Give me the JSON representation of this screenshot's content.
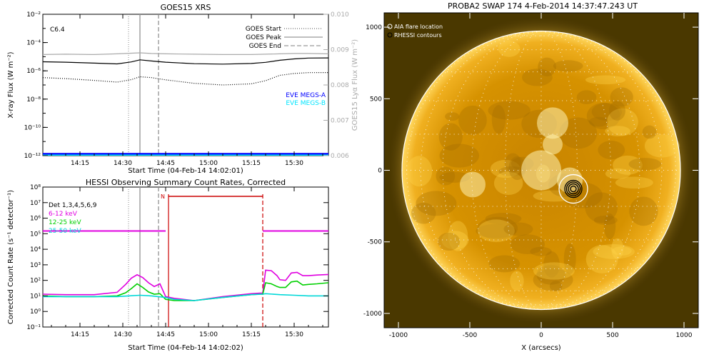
{
  "chart_data": [
    {
      "type": "line",
      "title": "GOES15 XRS",
      "xlabel": "Start Time (04-Feb-14 14:02:01)",
      "ylabel": "X-ray Flux (W m⁻²)",
      "y2label": "GOES15 Lyα Flux (W m⁻²)",
      "xticks": [
        "14:15",
        "14:30",
        "14:45",
        "15:00",
        "15:15",
        "15:30"
      ],
      "xticks_min": [
        15,
        30,
        45,
        60,
        75,
        90
      ],
      "xlim_min": [
        2,
        102
      ],
      "yscale": "log",
      "ylim": [
        1e-12,
        0.01
      ],
      "yticks": [
        "10⁻¹²",
        "10⁻¹⁰",
        "10⁻⁸",
        "10⁻⁶",
        "10⁻⁴",
        "10⁻²"
      ],
      "yticks_exp": [
        -12,
        -10,
        -8,
        -6,
        -4,
        -2
      ],
      "y2lim": [
        0.006,
        0.01
      ],
      "y2ticks": [
        "0.006",
        "0.007",
        "0.008",
        "0.009",
        "0.010"
      ],
      "y2ticks_val": [
        0.006,
        0.007,
        0.008,
        0.009,
        0.01
      ],
      "annotation": "C6.4",
      "legend": [
        "GOES Start",
        "GOES Peak",
        "GOES End"
      ],
      "legend2": [
        "EVE MEGS-A",
        "EVE MEGS-B"
      ],
      "markers_min": {
        "start": 32,
        "peak": 36,
        "end": 42.5
      },
      "series": [
        {
          "name": "",
          "color": "#000000",
          "x": [
            2,
            10,
            20,
            28,
            33,
            36,
            40,
            45,
            55,
            65,
            75,
            80,
            85,
            90,
            95,
            102
          ],
          "y": [
            4.4e-06,
            4.1e-06,
            3.5e-06,
            3.1e-06,
            4.3e-06,
            6e-06,
            5e-06,
            4.1e-06,
            3.2e-06,
            3e-06,
            3.3e-06,
            4e-06,
            5.6e-06,
            7e-06,
            8e-06,
            8.2e-06
          ]
        },
        {
          "name": "",
          "color": "#000000",
          "dash": "1,2",
          "x": [
            2,
            10,
            20,
            28,
            33,
            36,
            40,
            45,
            55,
            65,
            75,
            80,
            85,
            90,
            95,
            102
          ],
          "y": [
            3.3e-07,
            2.8e-07,
            2.1e-07,
            1.6e-07,
            2.4e-07,
            3.8e-07,
            3.3e-07,
            2.3e-07,
            1.3e-07,
            1e-07,
            1.2e-07,
            2e-07,
            4.8e-07,
            6.5e-07,
            7.5e-07,
            7.6e-07
          ]
        },
        {
          "name": "",
          "color": "#aaaaaa",
          "axis": "right",
          "x": [
            2,
            10,
            20,
            28,
            33,
            36,
            40,
            45,
            55,
            65,
            75,
            80,
            85,
            90,
            95,
            102
          ],
          "y": [
            0.00886,
            0.00887,
            0.00886,
            0.00888,
            0.0089,
            0.00891,
            0.00889,
            0.00888,
            0.00887,
            0.00886,
            0.00886,
            0.00887,
            0.00888,
            0.00889,
            0.00889,
            0.00888
          ]
        },
        {
          "name": "EVE MEGS-A",
          "color": "#0000ff",
          "x": [
            2,
            102
          ],
          "y": [
            1.3e-12,
            1.3e-12
          ]
        },
        {
          "name": "EVE MEGS-B",
          "color": "#00e5ff",
          "x": [
            2,
            102
          ],
          "y": [
            1e-12,
            1e-12
          ]
        }
      ]
    },
    {
      "type": "line",
      "title": "HESSI Observing Summary Count Rates, Corrected",
      "xlabel": "Start Time (04-Feb-14 14:02:02)",
      "ylabel": "Corrected Count Rate (s⁻¹ detector⁻¹)",
      "xticks": [
        "14:15",
        "14:30",
        "14:45",
        "15:00",
        "15:15",
        "15:30"
      ],
      "xticks_min": [
        15,
        30,
        45,
        60,
        75,
        90
      ],
      "xlim_min": [
        2,
        102
      ],
      "yscale": "log",
      "ylim": [
        0.1,
        100000000.0
      ],
      "yticks": [
        "10⁻¹",
        "10⁰",
        "10¹",
        "10²",
        "10³",
        "10⁴",
        "10⁵",
        "10⁶",
        "10⁷",
        "10⁸"
      ],
      "yticks_exp": [
        -1,
        0,
        1,
        2,
        3,
        4,
        5,
        6,
        7,
        8
      ],
      "legend": [
        {
          "label": "Det 1,3,4,5,6,9",
          "color": "#000000"
        },
        {
          "label": "6-12 keV",
          "color": "#e000e0"
        },
        {
          "label": "12-25 keV",
          "color": "#00d000"
        },
        {
          "label": "25-50 keV",
          "color": "#00d8d8"
        }
      ],
      "night_label": "N",
      "night_min": [
        46,
        79
      ],
      "markers_min": {
        "start": 32,
        "peak": 36,
        "end": 42.5
      },
      "series": [
        {
          "name": "6-12 keV",
          "color": "#e000e0",
          "x": [
            2,
            10,
            20,
            28,
            31,
            33,
            35,
            37,
            39,
            41,
            43,
            45,
            48,
            55,
            65,
            75,
            78,
            79,
            80,
            82,
            84,
            85,
            87,
            89,
            91,
            93,
            95,
            98,
            102
          ],
          "y": [
            13,
            12,
            12,
            17,
            55,
            140,
            230,
            150,
            70,
            40,
            60,
            9,
            7,
            5,
            9,
            14,
            15,
            15,
            450,
            420,
            200,
            110,
            100,
            300,
            330,
            200,
            200,
            220,
            240
          ]
        },
        {
          "name": "12-25 keV",
          "color": "#00d000",
          "x": [
            2,
            10,
            20,
            28,
            31,
            33,
            35,
            37,
            39,
            41,
            43,
            45,
            48,
            55,
            65,
            75,
            78,
            79,
            80,
            82,
            84,
            85,
            87,
            89,
            91,
            93,
            95,
            98,
            102
          ],
          "y": [
            10,
            9,
            9,
            10,
            16,
            30,
            60,
            35,
            18,
            13,
            14,
            6,
            5,
            5,
            8,
            12,
            13,
            13,
            70,
            60,
            40,
            35,
            35,
            80,
            90,
            50,
            55,
            60,
            70
          ]
        },
        {
          "name": "25-50 keV",
          "color": "#00d8d8",
          "x": [
            2,
            10,
            20,
            28,
            32,
            36,
            40,
            45,
            48,
            55,
            65,
            75,
            79,
            80,
            85,
            90,
            95,
            102
          ],
          "y": [
            9,
            9,
            9,
            9,
            10,
            11,
            10,
            8,
            6,
            5,
            8,
            12,
            13,
            14,
            12,
            11,
            10,
            10
          ]
        },
        {
          "name": "Det 1,3,4,5,6,9",
          "color": "#e000e0",
          "x": [
            2,
            45,
            79,
            102
          ],
          "y": [
            150000,
            150000,
            150000,
            150000
          ],
          "segments": [
            [
              2,
              45
            ],
            [
              79,
              102
            ]
          ]
        }
      ]
    },
    {
      "type": "scatter",
      "title": "PROBA2 SWAP 174   4-Feb-2014 14:37:47.243 UT",
      "xlabel": "X (arcsecs)",
      "ylabel": "",
      "xticks": [
        "-1000",
        "-500",
        "0",
        "500",
        "1000"
      ],
      "xticks_val": [
        -1000,
        -500,
        0,
        500,
        1000
      ],
      "yticks": [
        "-1000",
        "-500",
        "0",
        "500",
        "1000"
      ],
      "yticks_val": [
        -1000,
        -500,
        0,
        500,
        1000
      ],
      "xlim": [
        -1100,
        1100
      ],
      "ylim": [
        -1100,
        1100
      ],
      "legend": [
        "AIA flare location",
        "RHESSI contours"
      ],
      "solar_radius_arcsec": 975,
      "flare": {
        "x": 225,
        "y": -130,
        "aia_circle_r": 100,
        "contour_r": [
          20,
          35,
          48,
          60
        ]
      }
    }
  ]
}
